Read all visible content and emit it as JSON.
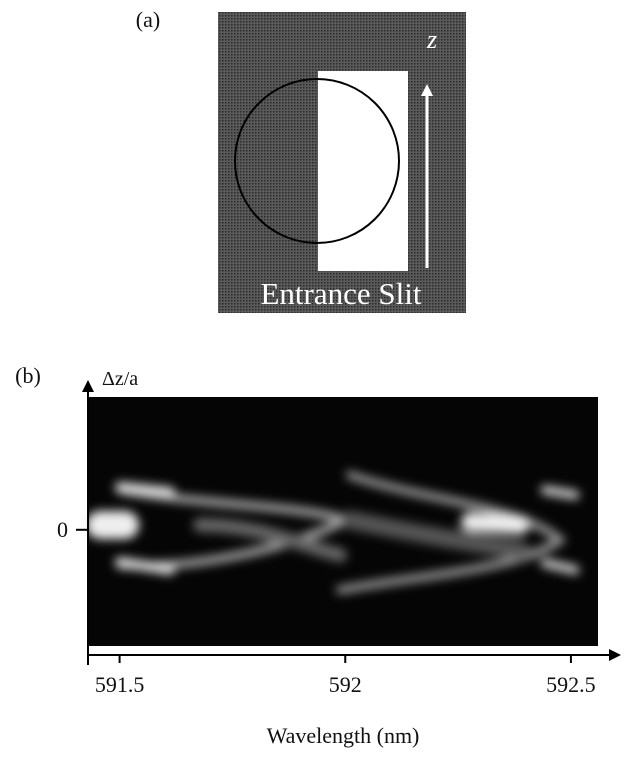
{
  "panel_a": {
    "label": "(a)",
    "axis_label": "z",
    "slit_label": "Entrance Slit"
  },
  "panel_b": {
    "label": "(b)",
    "y_axis_label": "Δz/a",
    "x_axis_label": "Wavelength (nm)",
    "xlim": [
      591.43,
      592.56
    ],
    "xticks": [
      591.5,
      592,
      592.5
    ],
    "ylim": [
      -1.05,
      1.2
    ],
    "yticks": [
      0
    ]
  }
}
